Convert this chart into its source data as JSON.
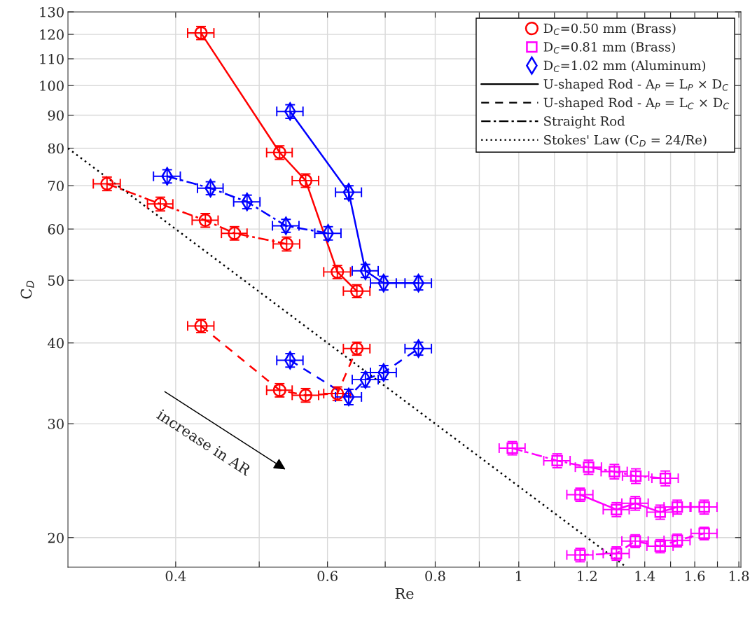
{
  "chart_data": {
    "type": "line",
    "xlabel": "Re",
    "ylabel": "C$_{D}$",
    "log": "xy",
    "grid": true,
    "legend": "top right",
    "xlim": [
      0.3,
      1.81
    ],
    "ylim": [
      18,
      130
    ],
    "xticks": [
      0.4,
      {
        "value": 0.5,
        "label": null
      },
      0.6,
      {
        "value": 0.7,
        "label": null
      },
      0.8,
      {
        "value": 0.9,
        "label": null
      },
      1,
      {
        "value": 1.1,
        "label": null
      },
      1.2,
      {
        "value": 1.3,
        "label": null
      },
      1.4,
      {
        "value": 1.5,
        "label": null
      },
      1.6,
      {
        "value": 1.7,
        "label": null
      },
      1.8
    ],
    "yticks": [
      20,
      30,
      40,
      50,
      60,
      70,
      80,
      90,
      100,
      110,
      120,
      130
    ],
    "annotations": [
      "increase in AR"
    ],
    "series": [
      {
        "name": "D$_{C}$=0.50 mm (Brass)",
        "color": "#ff0000",
        "marker": "circle",
        "line_style": "solid",
        "x": [
          0.428,
          0.528,
          0.566,
          0.616,
          0.649
        ],
        "values": [
          120.6,
          78.8,
          71.3,
          51.5,
          48.1
        ],
        "xerrors": [
          0.015,
          0.018,
          0.02,
          0.022,
          0.023
        ],
        "errors": [
          2.8,
          1.9,
          1.7,
          1.2,
          1.1
        ]
      },
      {
        "color": "#ff0000",
        "marker": "circle",
        "line_style": "dashed",
        "x": [
          0.428,
          0.528,
          0.566,
          0.616,
          0.649
        ],
        "values": [
          42.5,
          33.8,
          33.2,
          33.4,
          39.2
        ],
        "xerrors": [
          0.015,
          0.018,
          0.02,
          0.022,
          0.023
        ],
        "errors": [
          1.0,
          0.8,
          0.8,
          0.8,
          0.9
        ]
      },
      {
        "color": "#ff0000",
        "marker": "circle",
        "line_style": "dashdot",
        "x": [
          0.333,
          0.384,
          0.433,
          0.468,
          0.538
        ],
        "values": [
          70.5,
          65.6,
          61.9,
          59.1,
          56.9
        ],
        "xerrors": [
          0.012,
          0.013,
          0.015,
          0.016,
          0.019
        ],
        "errors": [
          1.7,
          1.6,
          1.5,
          1.4,
          1.4
        ]
      },
      {
        "name": "D$_{C}$=0.81 mm (Brass)",
        "color": "#ff00ff",
        "marker": "square",
        "line_style": "solid",
        "x": [
          1.178,
          1.298,
          1.365,
          1.459,
          1.527,
          1.641
        ],
        "values": [
          23.3,
          22.1,
          22.6,
          21.9,
          22.3,
          22.3
        ],
        "xerrors": [
          0.041,
          0.045,
          0.048,
          0.051,
          0.053,
          0.057
        ],
        "errors": [
          0.55,
          0.55,
          0.55,
          0.55,
          0.55,
          0.55
        ]
      },
      {
        "color": "#ff00ff",
        "marker": "square",
        "line_style": "dashed",
        "x": [
          1.178,
          1.298,
          1.365,
          1.459,
          1.527,
          1.641
        ],
        "values": [
          18.8,
          18.9,
          19.75,
          19.4,
          19.8,
          20.3
        ],
        "xerrors": [
          0.041,
          0.045,
          0.048,
          0.051,
          0.053,
          0.057
        ],
        "errors": [
          0.45,
          0.45,
          0.45,
          0.45,
          0.45,
          0.45
        ]
      },
      {
        "color": "#ff00ff",
        "marker": "square",
        "line_style": "dashdot",
        "x": [
          0.983,
          1.108,
          1.205,
          1.291,
          1.367,
          1.479
        ],
        "values": [
          27.5,
          26.3,
          25.7,
          25.3,
          24.9,
          24.7
        ],
        "xerrors": [
          0.034,
          0.039,
          0.042,
          0.045,
          0.048,
          0.052
        ],
        "errors": [
          0.65,
          0.65,
          0.65,
          0.65,
          0.65,
          0.65
        ]
      },
      {
        "name": "D$_{C}$=1.02 mm (Aluminum)",
        "color": "#0000ff",
        "marker": "diamond",
        "line_style": "solid",
        "x": [
          0.543,
          0.635,
          0.664,
          0.697,
          0.765
        ],
        "values": [
          91.2,
          68.4,
          51.7,
          49.5,
          49.5
        ],
        "xerrors": [
          0.019,
          0.022,
          0.023,
          0.024,
          0.027
        ],
        "errors": [
          2.2,
          1.6,
          1.2,
          1.2,
          1.2
        ]
      },
      {
        "color": "#0000ff",
        "marker": "diamond",
        "line_style": "dashed",
        "x": [
          0.543,
          0.635,
          0.664,
          0.697,
          0.765
        ],
        "values": [
          37.6,
          33.0,
          35.1,
          36.0,
          39.2
        ],
        "xerrors": [
          0.019,
          0.022,
          0.023,
          0.024,
          0.027
        ],
        "errors": [
          0.9,
          0.9,
          0.9,
          0.9,
          0.9
        ]
      },
      {
        "color": "#0000ff",
        "marker": "diamond",
        "line_style": "dashdot",
        "x": [
          0.391,
          0.439,
          0.484,
          0.537,
          0.601
        ],
        "values": [
          72.4,
          69.4,
          66.1,
          60.7,
          59.1
        ],
        "xerrors": [
          0.014,
          0.015,
          0.017,
          0.019,
          0.021
        ],
        "errors": [
          1.7,
          1.6,
          1.6,
          1.4,
          1.4
        ]
      },
      {
        "name": "U-shaped Rod - A$_{P}$ = L$_{P}$ × D$_{C}$",
        "color": "#000000",
        "marker": "none",
        "line_style": "solid"
      },
      {
        "name": "U-shaped Rod - A$_{P}$ = L$_{C}$ × D$_{C}$",
        "color": "#000000",
        "marker": "none",
        "line_style": "dashed"
      },
      {
        "name": "Straight Rod",
        "color": "#000000",
        "marker": "none",
        "line_style": "dashdot"
      },
      {
        "name": "Stokes' Law (C$_{D}$ = 24/Re)",
        "color": "#000000",
        "marker": "none",
        "line_style": "dotted",
        "x": [
          0.3,
          1.333
        ],
        "values": [
          80,
          18.0
        ]
      }
    ]
  }
}
